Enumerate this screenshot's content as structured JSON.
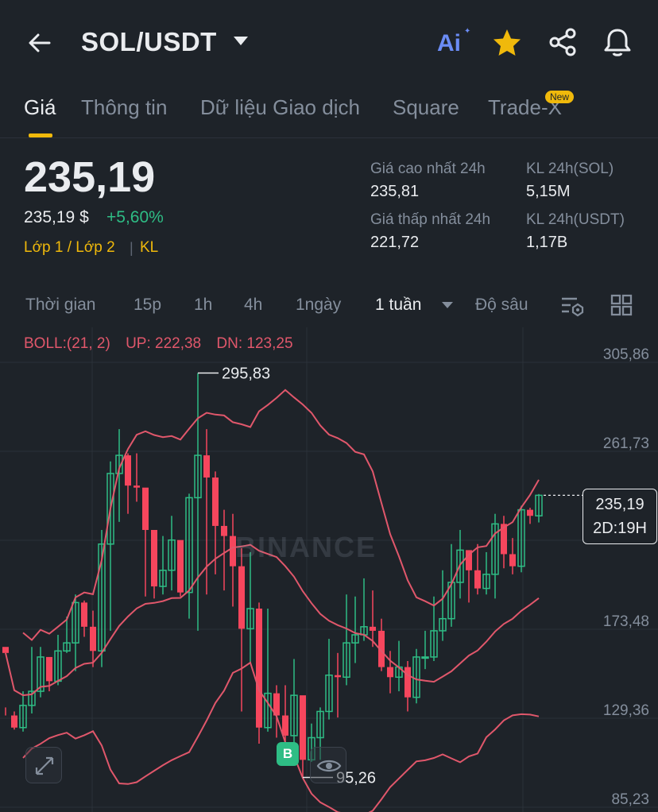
{
  "header": {
    "back_icon": "arrow-left-icon",
    "pair": "SOL/USDT",
    "ai_label": "Ai",
    "favorite_icon": "star-icon",
    "share_icon": "share-icon",
    "alert_icon": "bell-icon"
  },
  "tabs": [
    {
      "label": "Giá",
      "active": true
    },
    {
      "label": "Thông tin"
    },
    {
      "label": "Dữ liệu Giao dịch"
    },
    {
      "label": "Square"
    },
    {
      "label": "Trade-X",
      "badge": "New"
    }
  ],
  "price": {
    "last": "235,19",
    "fiat": "235,19 $",
    "change": "+5,60%",
    "layer_link": "Lớp 1 / Lớp 2",
    "kl_link": "KL"
  },
  "stats": {
    "high_label": "Giá cao nhất 24h",
    "high_value": "235,81",
    "low_label": "Giá thấp nhất 24h",
    "low_value": "221,72",
    "vol_base_label": "KL 24h(SOL)",
    "vol_base_value": "5,15M",
    "vol_quote_label": "KL 24h(USDT)",
    "vol_quote_value": "1,17B"
  },
  "intervals": {
    "time": "Thời gian",
    "m15": "15p",
    "h1": "1h",
    "h4": "4h",
    "d1": "1ngày",
    "w1": "1 tuần",
    "depth": "Độ sâu",
    "indicator_icon": "indicator-settings-icon",
    "layout_icon": "grid-layout-icon"
  },
  "chart": {
    "indicator": "BOLL:(21, 2)",
    "up": "UP: 222,38",
    "dn": "DN: 123,25",
    "watermark": "BINANCE",
    "last_price_tag": "235,19",
    "countdown": "2D:19H",
    "high_marker": "295,83",
    "low_marker": "95,26",
    "buy_marker": "B",
    "expand_icon": "expand-icon",
    "eye_icon": "eye-icon",
    "colors": {
      "up": "#2ebd85",
      "down": "#f6465d",
      "boll": "#e0576b",
      "grid": "#2b3139"
    }
  },
  "chart_data": {
    "type": "candlestick",
    "y_ticks": [
      "305,86",
      "261,73",
      "217,61",
      "173,48",
      "129,36",
      "85,23"
    ],
    "ylim": [
      85.23,
      305.86
    ],
    "annotations": {
      "high": "295,83",
      "low": "95,26",
      "last": "235,19"
    },
    "candles": [
      [
        160,
        157,
        130,
        126
      ],
      [
        126,
        120,
        128,
        119
      ],
      [
        120,
        131,
        138,
        118
      ],
      [
        131,
        138,
        160,
        127
      ],
      [
        138,
        155,
        160,
        135
      ],
      [
        155,
        143,
        148,
        138
      ],
      [
        143,
        158,
        166,
        141
      ],
      [
        158,
        162,
        175,
        157
      ],
      [
        162,
        182,
        186,
        148
      ],
      [
        182,
        170,
        183,
        165
      ],
      [
        170,
        158,
        178,
        150
      ],
      [
        158,
        211,
        218,
        150
      ],
      [
        211,
        246,
        252,
        168
      ],
      [
        246,
        255,
        268,
        222
      ],
      [
        255,
        240,
        256,
        226
      ],
      [
        240,
        239,
        256,
        232
      ],
      [
        239,
        218,
        228,
        185
      ],
      [
        218,
        190,
        212,
        184
      ],
      [
        190,
        198,
        215,
        186
      ],
      [
        198,
        213,
        225,
        188
      ],
      [
        213,
        187,
        203,
        185
      ],
      [
        187,
        234,
        236,
        174
      ],
      [
        234,
        255,
        295.83,
        168
      ],
      [
        255,
        244,
        268,
        186
      ],
      [
        244,
        220,
        247,
        196
      ],
      [
        220,
        215,
        228,
        188
      ],
      [
        215,
        200,
        226,
        180
      ],
      [
        200,
        169,
        209,
        128
      ],
      [
        169,
        179,
        207,
        152
      ],
      [
        179,
        120,
        182,
        112
      ],
      [
        120,
        137,
        179,
        118
      ],
      [
        137,
        126,
        141,
        115
      ],
      [
        126,
        116,
        141,
        106
      ],
      [
        116,
        136,
        154,
        104
      ],
      [
        136,
        104,
        125,
        95.26
      ],
      [
        104,
        115,
        122,
        103
      ],
      [
        115,
        128,
        130,
        104
      ],
      [
        128,
        146,
        164,
        124
      ],
      [
        146,
        145,
        157,
        125
      ],
      [
        145,
        162,
        186,
        141
      ],
      [
        162,
        166,
        185,
        152
      ],
      [
        166,
        170,
        194,
        163
      ],
      [
        170,
        168,
        188,
        160
      ],
      [
        168,
        150,
        174,
        148
      ],
      [
        150,
        145,
        158,
        137
      ],
      [
        145,
        150,
        163,
        138
      ],
      [
        150,
        135,
        153,
        128
      ],
      [
        135,
        155,
        159,
        132
      ],
      [
        155,
        155,
        168,
        149
      ],
      [
        155,
        168,
        185,
        153
      ],
      [
        168,
        174,
        198,
        163
      ],
      [
        174,
        192,
        211,
        170
      ],
      [
        192,
        208,
        218,
        184
      ],
      [
        208,
        198,
        206,
        182
      ],
      [
        198,
        189,
        211,
        186
      ],
      [
        189,
        196,
        207,
        186
      ],
      [
        196,
        221,
        226,
        184
      ],
      [
        221,
        206,
        225,
        199
      ],
      [
        206,
        200,
        214,
        196
      ],
      [
        200,
        228,
        230,
        197
      ],
      [
        228,
        225,
        229,
        221
      ],
      [
        225,
        235.19,
        235.81,
        221.72
      ]
    ],
    "boll_upper": [],
    "boll_mid": [],
    "boll_lower": []
  }
}
